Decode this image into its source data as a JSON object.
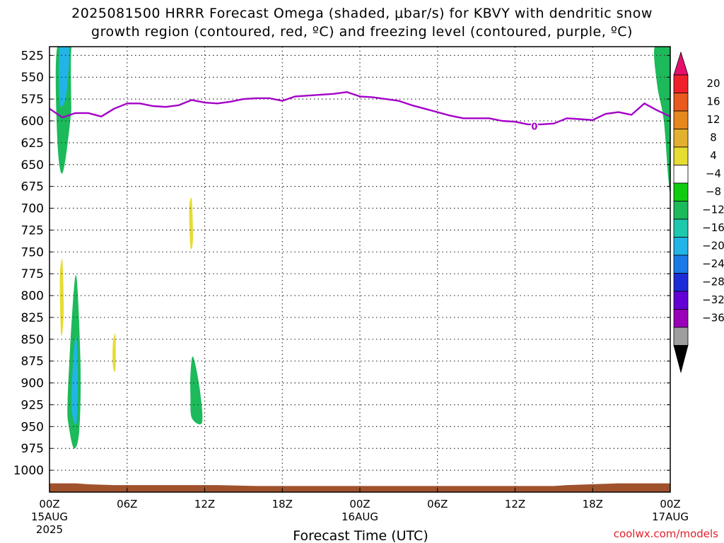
{
  "title": {
    "line1": "2025081500 HRRR Forecast Omega (shaded, μbar/s) for KBVY with dendritic snow",
    "line2": "growth region (contoured, red, ºC) and freezing level (contoured, purple, ºC)"
  },
  "credit": "coolwx.com/models",
  "chart_data": {
    "type": "heatmap",
    "xlabel": "Forecast Time (UTC)",
    "x_unit": "hours",
    "xlim": [
      0,
      48
    ],
    "x_ticks": [
      {
        "hour": 0,
        "label": "00Z",
        "sub1": "15AUG",
        "sub2": "2025"
      },
      {
        "hour": 6,
        "label": "06Z"
      },
      {
        "hour": 12,
        "label": "12Z"
      },
      {
        "hour": 18,
        "label": "18Z"
      },
      {
        "hour": 24,
        "label": "00Z",
        "sub1": "16AUG"
      },
      {
        "hour": 30,
        "label": "06Z"
      },
      {
        "hour": 36,
        "label": "12Z"
      },
      {
        "hour": 42,
        "label": "18Z"
      },
      {
        "hour": 48,
        "label": "00Z",
        "sub1": "17AUG"
      }
    ],
    "ylabel": "",
    "y_unit": "hPa",
    "ylim": [
      1025,
      515
    ],
    "y_ticks": [
      525,
      550,
      575,
      600,
      625,
      650,
      675,
      700,
      725,
      750,
      775,
      800,
      825,
      850,
      875,
      900,
      925,
      950,
      975,
      1000
    ],
    "grid": true,
    "colorbar": {
      "levels": [
        -36,
        -32,
        -28,
        -24,
        -20,
        -16,
        -12,
        -8,
        -4,
        4,
        8,
        12,
        16,
        20
      ],
      "colors": [
        "#000000",
        "#9e9e9e",
        "#9900b8",
        "#6200d6",
        "#1c2cd6",
        "#1a7ae8",
        "#22b4e6",
        "#1ec8ac",
        "#1cba5a",
        "#10cc10",
        "#ffffff",
        "#e6dc32",
        "#e4b030",
        "#e6881e",
        "#e85a1e",
        "#f0202a",
        "#e6106c"
      ]
    },
    "omega_regions": [
      {
        "name": "green",
        "value": -6,
        "pts": [
          [
            0.6,
            515
          ],
          [
            2.0,
            515
          ],
          [
            1.6,
            600
          ],
          [
            1.0,
            660
          ],
          [
            0.6,
            620
          ]
        ]
      },
      {
        "name": "cyan",
        "value": -14,
        "pts": [
          [
            0.8,
            515
          ],
          [
            1.5,
            515
          ],
          [
            1.3,
            570
          ],
          [
            0.8,
            580
          ]
        ]
      },
      {
        "name": "yellow",
        "value": 5,
        "pts": [
          [
            1.7,
            515
          ],
          [
            2.3,
            515
          ],
          [
            2.1,
            660
          ],
          [
            1.8,
            690
          ],
          [
            1.7,
            600
          ]
        ]
      },
      {
        "name": "yellow",
        "value": 5,
        "pts": [
          [
            0.5,
            770
          ],
          [
            1.0,
            710
          ],
          [
            1.6,
            760
          ],
          [
            1.5,
            850
          ],
          [
            1.0,
            885
          ],
          [
            0.6,
            860
          ]
        ]
      },
      {
        "name": "orange",
        "value": 10,
        "pts": [
          [
            0.8,
            780
          ],
          [
            1.0,
            760
          ],
          [
            1.1,
            820
          ],
          [
            0.9,
            845
          ]
        ]
      },
      {
        "name": "green",
        "value": -6,
        "pts": [
          [
            1.4,
            920
          ],
          [
            1.8,
            810
          ],
          [
            2.1,
            780
          ],
          [
            2.4,
            880
          ],
          [
            2.3,
            955
          ],
          [
            1.9,
            975
          ],
          [
            1.5,
            950
          ]
        ]
      },
      {
        "name": "cyan",
        "value": -14,
        "pts": [
          [
            1.7,
            915
          ],
          [
            1.9,
            860
          ],
          [
            2.1,
            850
          ],
          [
            2.2,
            900
          ],
          [
            2.1,
            945
          ],
          [
            1.8,
            940
          ]
        ]
      },
      {
        "name": "yellow",
        "value": 5,
        "pts": [
          [
            4.7,
            530
          ],
          [
            5.1,
            530
          ],
          [
            5.2,
            600
          ],
          [
            4.8,
            615
          ]
        ]
      },
      {
        "name": "yellow",
        "value": 5,
        "pts": [
          [
            5.2,
            625
          ],
          [
            5.9,
            620
          ],
          [
            6.3,
            700
          ],
          [
            6.1,
            750
          ],
          [
            5.8,
            770
          ],
          [
            5.4,
            700
          ]
        ]
      },
      {
        "name": "yellow",
        "value": 5,
        "pts": [
          [
            4.5,
            880
          ],
          [
            4.8,
            820
          ],
          [
            5.2,
            840
          ],
          [
            5.9,
            900
          ],
          [
            5.7,
            940
          ],
          [
            5.0,
            960
          ],
          [
            4.5,
            930
          ]
        ]
      },
      {
        "name": "orange",
        "value": 10,
        "pts": [
          [
            4.9,
            855
          ],
          [
            5.1,
            845
          ],
          [
            5.1,
            885
          ],
          [
            4.9,
            880
          ]
        ]
      },
      {
        "name": "yellow",
        "value": 5,
        "pts": [
          [
            10.3,
            700
          ],
          [
            10.9,
            650
          ],
          [
            11.3,
            690
          ],
          [
            11.4,
            750
          ],
          [
            11.0,
            790
          ],
          [
            10.5,
            755
          ]
        ]
      },
      {
        "name": "orange",
        "value": 10,
        "pts": [
          [
            10.8,
            700
          ],
          [
            11.0,
            690
          ],
          [
            11.1,
            735
          ],
          [
            10.9,
            745
          ]
        ]
      },
      {
        "name": "yellow",
        "value": 5,
        "pts": [
          [
            12.7,
            750
          ],
          [
            12.9,
            735
          ],
          [
            13.3,
            790
          ],
          [
            13.0,
            830
          ],
          [
            12.8,
            800
          ]
        ]
      },
      {
        "name": "green",
        "value": -6,
        "pts": [
          [
            10.9,
            890
          ],
          [
            11.1,
            870
          ],
          [
            11.6,
            905
          ],
          [
            11.8,
            945
          ],
          [
            11.0,
            940
          ],
          [
            10.9,
            915
          ]
        ]
      },
      {
        "name": "yellow",
        "value": 5,
        "pts": [
          [
            13.9,
            515
          ],
          [
            15.2,
            515
          ],
          [
            15.1,
            555
          ],
          [
            14.9,
            580
          ],
          [
            14.4,
            545
          ],
          [
            14.0,
            530
          ]
        ]
      },
      {
        "name": "yellow",
        "value": 5,
        "pts": [
          [
            21.5,
            940
          ],
          [
            21.9,
            840
          ],
          [
            22.5,
            900
          ],
          [
            23.5,
            880
          ],
          [
            24.8,
            870
          ],
          [
            25.5,
            900
          ],
          [
            25.3,
            960
          ],
          [
            24.0,
            980
          ],
          [
            23.2,
            960
          ],
          [
            22.0,
            950
          ]
        ]
      },
      {
        "name": "yellow",
        "value": 5,
        "pts": [
          [
            40.0,
            980
          ],
          [
            40.5,
            920
          ],
          [
            41.5,
            880
          ],
          [
            42.0,
            910
          ],
          [
            42.3,
            900
          ],
          [
            43.0,
            870
          ],
          [
            44.0,
            870
          ],
          [
            44.6,
            940
          ],
          [
            44.0,
            945
          ],
          [
            43.0,
            940
          ],
          [
            42.5,
            970
          ],
          [
            41.5,
            985
          ],
          [
            40.3,
            990
          ]
        ]
      },
      {
        "name": "yellow",
        "value": 5,
        "pts": [
          [
            43.8,
            515
          ],
          [
            44.1,
            515
          ],
          [
            44.2,
            620
          ],
          [
            43.9,
            690
          ],
          [
            43.7,
            600
          ]
        ]
      },
      {
        "name": "yellow",
        "value": 5,
        "pts": [
          [
            45.5,
            515
          ],
          [
            45.7,
            515
          ],
          [
            45.6,
            530
          ],
          [
            45.5,
            525
          ]
        ]
      },
      {
        "name": "yellow",
        "value": 5,
        "pts": [
          [
            46.6,
            640
          ],
          [
            46.8,
            660
          ],
          [
            46.7,
            690
          ],
          [
            46.5,
            665
          ]
        ]
      },
      {
        "name": "yellow",
        "value": 5,
        "pts": [
          [
            46.0,
            930
          ],
          [
            46.5,
            900
          ],
          [
            48.0,
            890
          ],
          [
            47.8,
            940
          ],
          [
            47.0,
            970
          ],
          [
            46.3,
            950
          ]
        ]
      },
      {
        "name": "green",
        "value": -6,
        "pts": [
          [
            46.8,
            515
          ],
          [
            48.0,
            515
          ],
          [
            48.0,
            680
          ],
          [
            47.5,
            600
          ],
          [
            47.0,
            560
          ]
        ]
      }
    ],
    "freezing_level": {
      "label": "0",
      "label_at": [
        37.5,
        606
      ],
      "points": [
        [
          0,
          586
        ],
        [
          1,
          596
        ],
        [
          2,
          591
        ],
        [
          3,
          591
        ],
        [
          4,
          595
        ],
        [
          5,
          586
        ],
        [
          6,
          580
        ],
        [
          7,
          580
        ],
        [
          8,
          583
        ],
        [
          9,
          584
        ],
        [
          10,
          582
        ],
        [
          11,
          576
        ],
        [
          12,
          579
        ],
        [
          13,
          580
        ],
        [
          14,
          578
        ],
        [
          15,
          575
        ],
        [
          16,
          574
        ],
        [
          17,
          574
        ],
        [
          18,
          577
        ],
        [
          19,
          572
        ],
        [
          20,
          571
        ],
        [
          21,
          570
        ],
        [
          22,
          569
        ],
        [
          23,
          567
        ],
        [
          24,
          572
        ],
        [
          25,
          573
        ],
        [
          26,
          575
        ],
        [
          27,
          577
        ],
        [
          28,
          582
        ],
        [
          29,
          586
        ],
        [
          30,
          590
        ],
        [
          31,
          594
        ],
        [
          32,
          597
        ],
        [
          33,
          597
        ],
        [
          34,
          597
        ],
        [
          35,
          600
        ],
        [
          36,
          601
        ],
        [
          37,
          604
        ],
        [
          38,
          604
        ],
        [
          39,
          603
        ],
        [
          40,
          597
        ],
        [
          41,
          598
        ],
        [
          42,
          599
        ],
        [
          43,
          592
        ],
        [
          44,
          590
        ],
        [
          45,
          593
        ],
        [
          46,
          580
        ],
        [
          47,
          588
        ],
        [
          48,
          595
        ]
      ]
    },
    "terrain": {
      "points": [
        [
          0,
          1015
        ],
        [
          1,
          1015
        ],
        [
          2,
          1015
        ],
        [
          3,
          1016
        ],
        [
          5,
          1017
        ],
        [
          8,
          1017
        ],
        [
          10,
          1017
        ],
        [
          13,
          1017
        ],
        [
          16,
          1018
        ],
        [
          20,
          1018
        ],
        [
          24,
          1018
        ],
        [
          28,
          1018
        ],
        [
          32,
          1018
        ],
        [
          36,
          1018
        ],
        [
          39,
          1018
        ],
        [
          40,
          1017
        ],
        [
          42,
          1016
        ],
        [
          44,
          1015
        ],
        [
          46,
          1015
        ],
        [
          48,
          1015
        ]
      ],
      "bottom": 1025
    }
  }
}
